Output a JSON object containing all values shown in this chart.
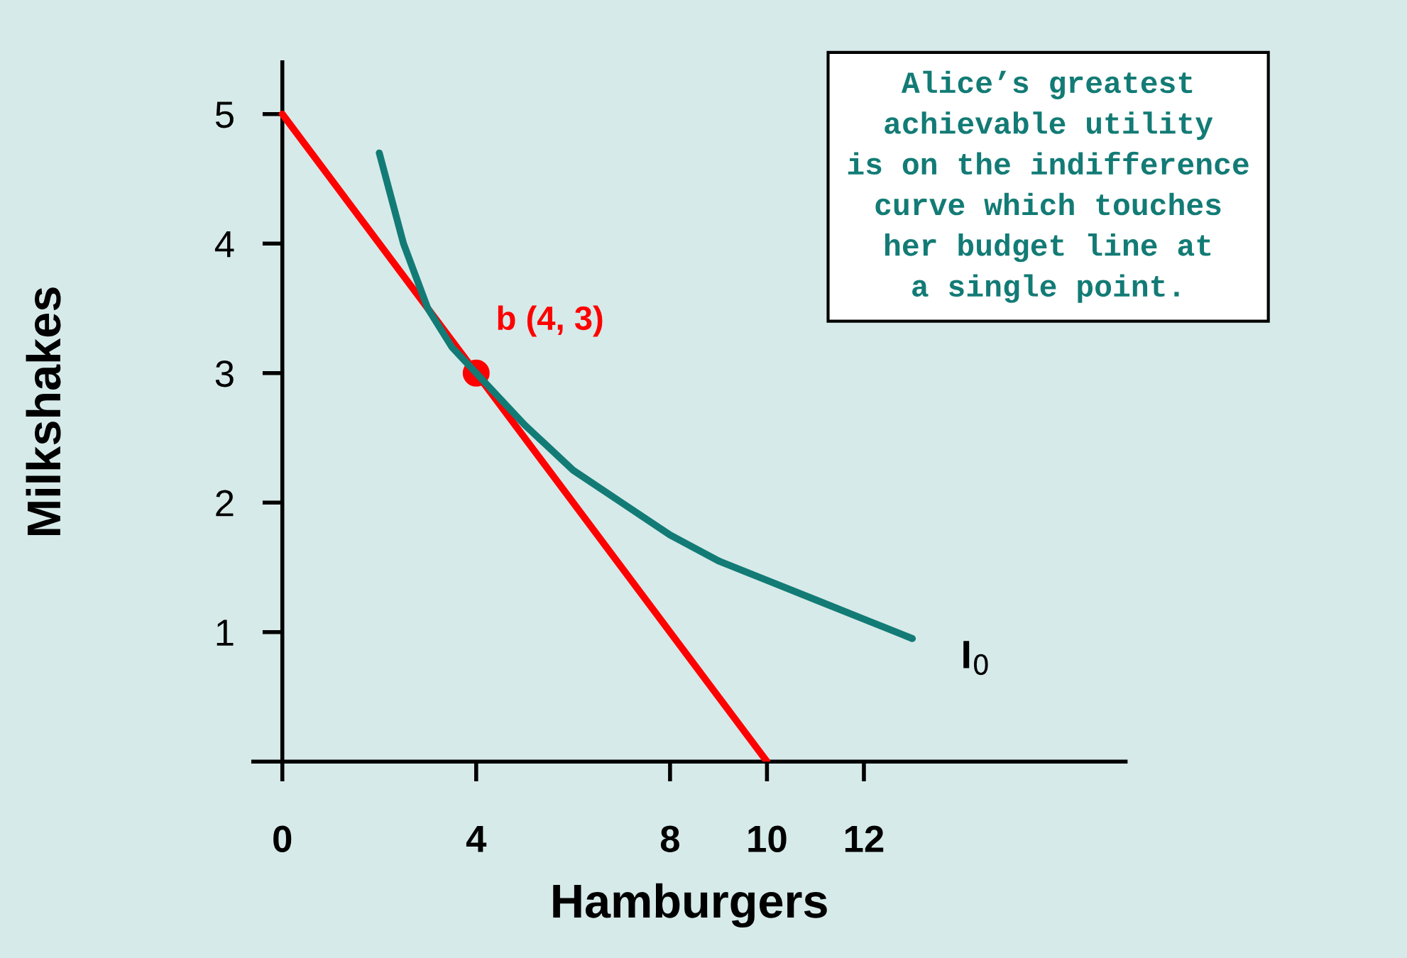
{
  "chart_data": {
    "type": "line",
    "xlabel": "Hamburgers",
    "ylabel": "Milkshakes",
    "xlim": [
      -0.6,
      17.4
    ],
    "ylim": [
      0,
      5.4
    ],
    "xticks": [
      0,
      4,
      8,
      10,
      12
    ],
    "yticks": [
      1,
      2,
      3,
      4,
      5
    ],
    "grid": false,
    "legend": false,
    "series": [
      {
        "color": "#ff0000",
        "x": [
          0,
          10
        ],
        "values": [
          5,
          0
        ],
        "marker": "none"
      },
      {
        "name": "I$_{0}$",
        "color": "#137b75",
        "x": [
          2.0,
          2.5,
          3,
          3.5,
          4,
          5,
          6,
          7,
          8,
          9,
          10,
          11,
          12,
          13
        ],
        "values": [
          4.7,
          4.0,
          3.5,
          3.2,
          3.0,
          2.6,
          2.25,
          2.0,
          1.75,
          1.55,
          1.4,
          1.25,
          1.1,
          0.95
        ],
        "marker": "none"
      },
      {
        "type": "scatter",
        "color": "#ff0000",
        "x": [
          4
        ],
        "values": [
          3
        ],
        "marker": "circle"
      }
    ],
    "annotations": [
      {
        "text": "b (4, 3)",
        "x": 4,
        "y": 3
      },
      "Alice’s greatest\nachievable utility\nis on the indifference\ncurve which touches\nher budget line at\na single point."
    ]
  }
}
